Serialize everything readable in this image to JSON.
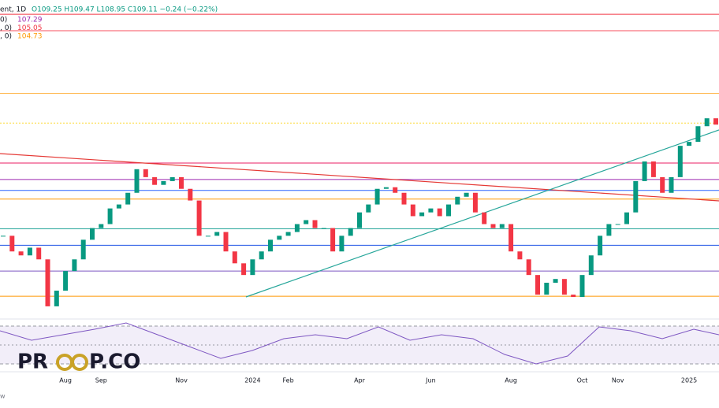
{
  "header": {
    "symbol": "ent, 1D",
    "ohlc": "O109.25 H109.47 L108.95 C109.11 −0.24 (−0.22%)"
  },
  "ma_labels": [
    {
      "prefix": "0)",
      "value": "107.29",
      "color": "#9c27b0"
    },
    {
      "prefix": ", 0)",
      "value": "105.05",
      "color": "#f23645"
    },
    {
      "prefix": ", 0)",
      "value": "104.73",
      "color": "#ff9800"
    }
  ],
  "logo": {
    "left": "PR",
    "right": "P.CO"
  },
  "footer": "w",
  "chart_data": {
    "type": "candlestick",
    "categories": [
      null,
      null,
      null,
      null,
      null,
      null,
      null,
      "Aug",
      null,
      null,
      null,
      "Sep",
      null,
      null,
      null,
      null,
      null,
      null,
      null,
      null,
      "Nov",
      null,
      null,
      null,
      null,
      null,
      null,
      null,
      "2024",
      null,
      null,
      null,
      "Feb",
      null,
      null,
      null,
      null,
      null,
      null,
      null,
      "Apr",
      null,
      null,
      null,
      null,
      null,
      null,
      null,
      "Jun",
      null,
      null,
      null,
      null,
      null,
      null,
      null,
      null,
      "Aug",
      null,
      null,
      null,
      null,
      null,
      null,
      null,
      "Oct",
      null,
      null,
      null,
      "Nov",
      null,
      null,
      null,
      null,
      null,
      null,
      null,
      "2025",
      null,
      null,
      null
    ],
    "series": [
      {
        "name": "close",
        "up_color": "#089981",
        "down_color": "#f23645",
        "values": [
          103.5,
          102.71,
          102.51,
          102.9,
          102.31,
          99.94,
          100.73,
          101.72,
          102.31,
          103.3,
          103.89,
          104.09,
          104.88,
          105.08,
          105.67,
          106.86,
          106.46,
          106.07,
          106.26,
          106.46,
          105.87,
          105.28,
          103.5,
          103.5,
          103.69,
          102.71,
          102.11,
          101.52,
          102.31,
          102.71,
          103.3,
          103.5,
          103.69,
          104.09,
          104.29,
          103.89,
          103.89,
          102.71,
          103.5,
          103.89,
          104.68,
          105.08,
          105.87,
          105.95,
          105.67,
          105.08,
          104.49,
          104.68,
          104.88,
          104.49,
          105.08,
          105.47,
          105.67,
          104.68,
          104.09,
          103.89,
          104.09,
          102.71,
          102.31,
          101.52,
          100.53,
          101.13,
          101.32,
          100.53,
          100.41,
          101.52,
          102.51,
          103.5,
          104.09,
          104.09,
          104.68,
          106.26,
          107.25,
          106.46,
          105.67,
          106.46,
          108.04,
          108.24,
          109.03,
          109.43,
          109.11
        ]
      }
    ],
    "levels": [
      {
        "value": 114.68,
        "color": "#f23645"
      },
      {
        "value": 113.85,
        "color": "#f7525f"
      },
      {
        "value": 110.69,
        "color": "#ffb74d"
      },
      {
        "value": 109.19,
        "color": "#fdd835"
      },
      {
        "value": 107.17,
        "color": "#e91e63"
      },
      {
        "value": 106.34,
        "color": "#9c27b0"
      },
      {
        "value": 105.79,
        "color": "#2962ff"
      },
      {
        "value": 105.35,
        "color": "#ff9800"
      },
      {
        "value": 103.85,
        "color": "#26a69a"
      },
      {
        "value": 103.02,
        "color": "#1e53e5"
      },
      {
        "value": 101.72,
        "color": "#7e57c2"
      },
      {
        "value": 100.45,
        "color": "#ff9800"
      }
    ],
    "ylim": [
      99.3,
      115.4
    ]
  }
}
